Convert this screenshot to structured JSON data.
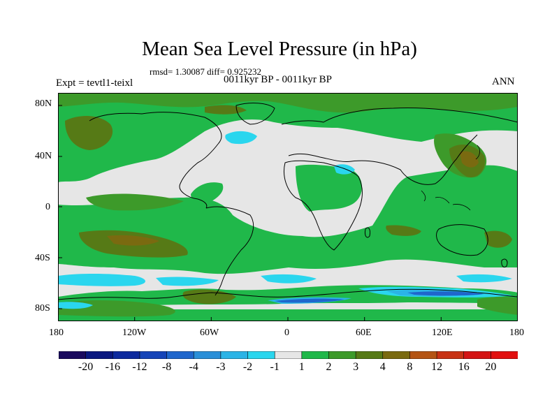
{
  "title": "Mean Sea Level Pressure (in hPa)",
  "stats": "rmsd= 1.30087 diff= 0.925232",
  "experiment": "Expt = tevtl1-teixl",
  "period": "0011kyr BP - 0011kyr BP",
  "season": "ANN",
  "lat_axis": [
    "80N",
    "40N",
    "0",
    "40S",
    "80S"
  ],
  "lon_axis": [
    "180",
    "120W",
    "60W",
    "0",
    "60E",
    "120E",
    "180"
  ],
  "colorbar": {
    "labels": [
      "-20",
      "-16",
      "-12",
      "-8",
      "-4",
      "-3",
      "-2",
      "-1",
      "1",
      "2",
      "3",
      "4",
      "8",
      "12",
      "16",
      "20"
    ],
    "colors": [
      "#1a0a5e",
      "#0a1880",
      "#0d2a9e",
      "#1544b8",
      "#1f66cc",
      "#2a8fd8",
      "#2bb4e6",
      "#2ad6ee",
      "#e6e6e6",
      "#20b84a",
      "#3d9a2a",
      "#567a16",
      "#7a6a10",
      "#b45414",
      "#c83214",
      "#d41414",
      "#e21010"
    ]
  },
  "palette": {
    "neutral": "#e6e6e6",
    "light_green": "#20b84a",
    "green": "#3d9a2a",
    "olive": "#567a16",
    "brown": "#7a6a10",
    "cyan": "#2ad6ee",
    "sky": "#2bb4e6",
    "blue": "#1f66cc"
  }
}
